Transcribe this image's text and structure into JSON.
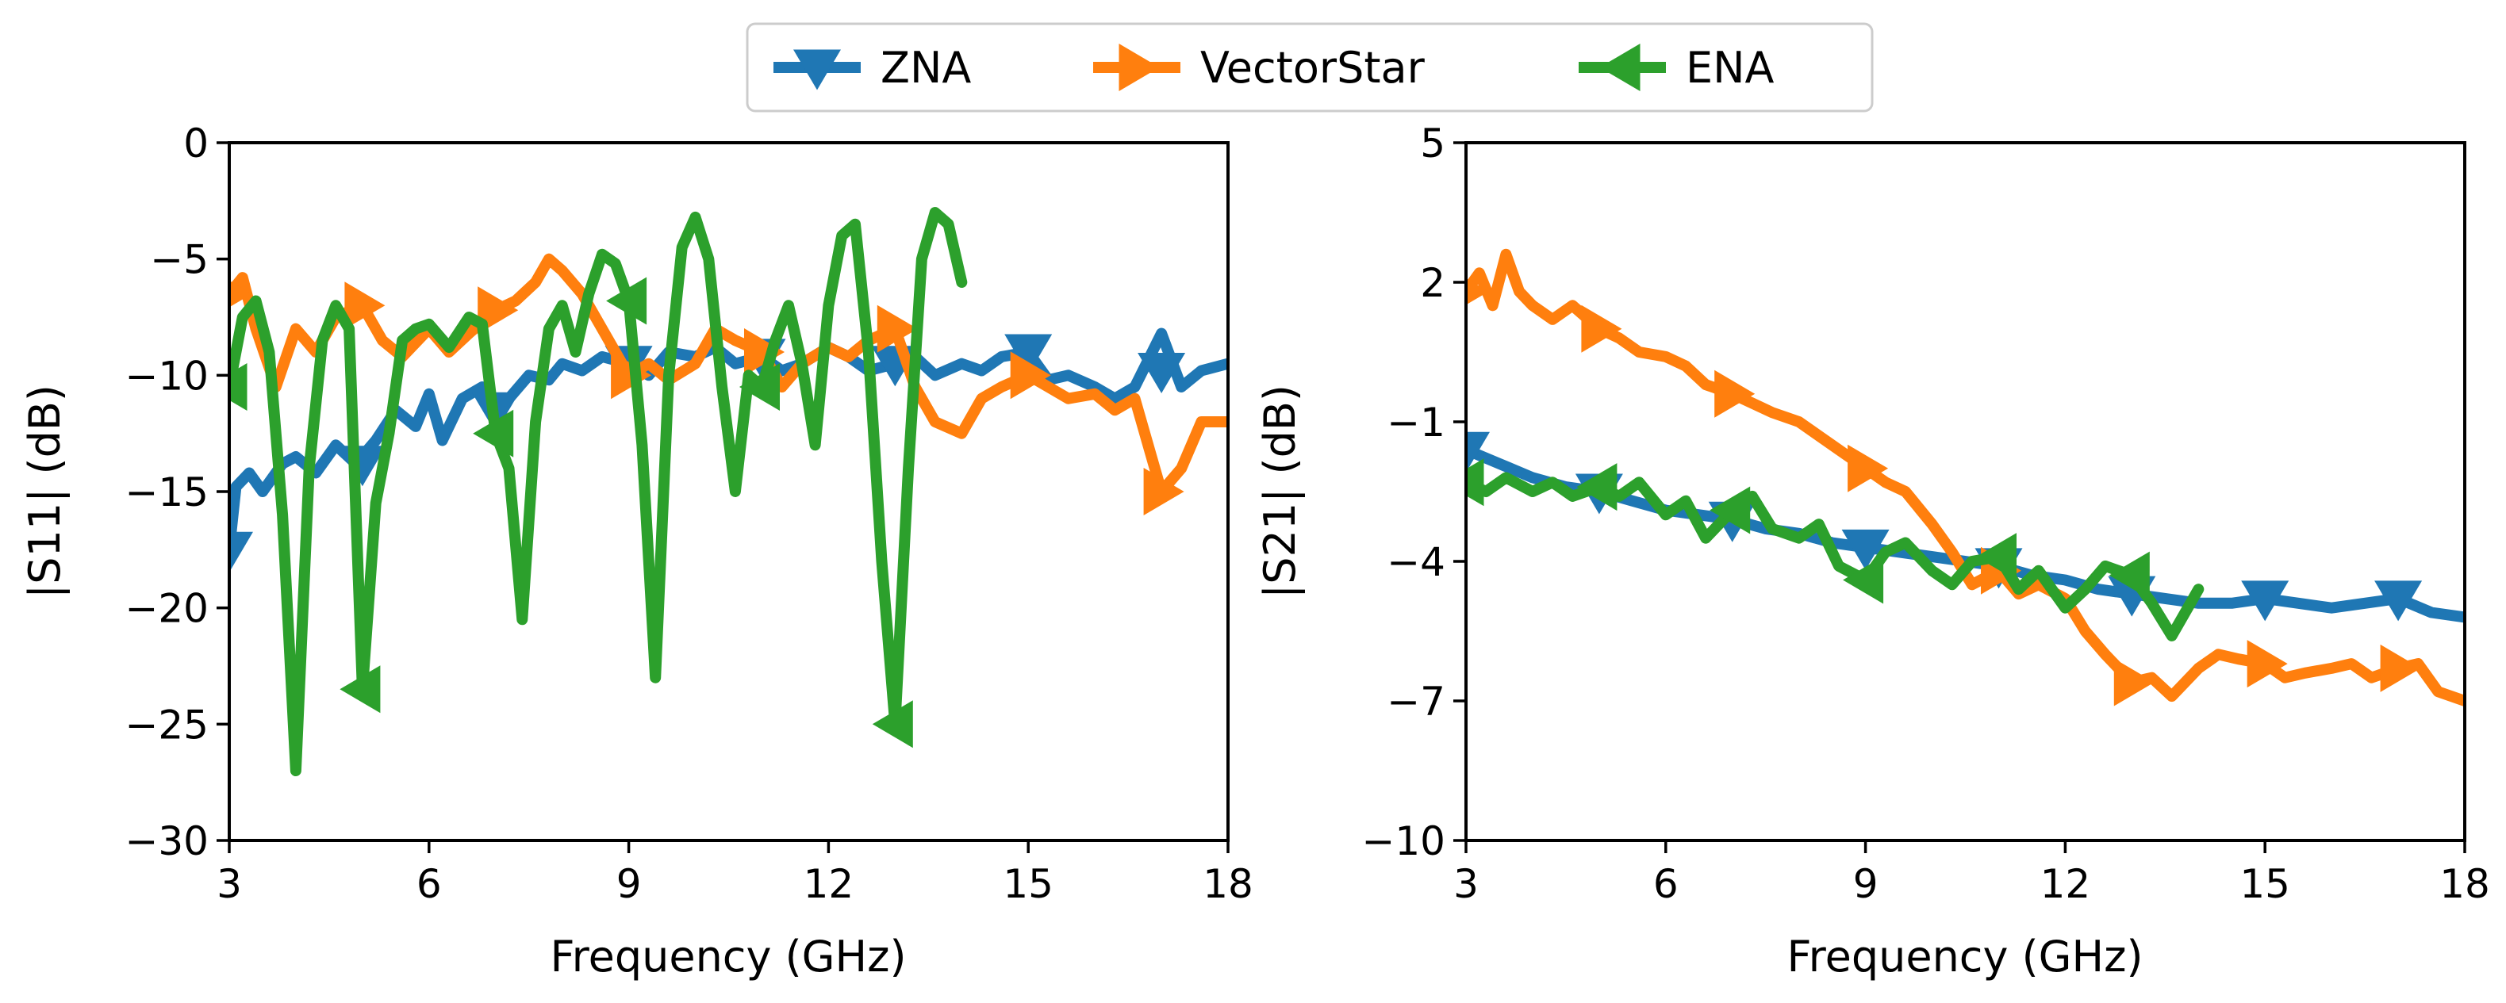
{
  "legend": {
    "items": [
      {
        "label": "ZNA",
        "color": "#1f77b4",
        "marker": "triangle-down"
      },
      {
        "label": "VectorStar",
        "color": "#ff7f0e",
        "marker": "triangle-right"
      },
      {
        "label": "ENA",
        "color": "#2ca02c",
        "marker": "triangle-left"
      }
    ]
  },
  "chart_data": [
    {
      "type": "line",
      "id": "s11",
      "xlabel": "Frequency (GHz)",
      "ylabel": "|S11| (dB)",
      "xlim": [
        3,
        18
      ],
      "ylim": [
        -30,
        0
      ],
      "xticks": [
        3,
        6,
        9,
        12,
        15,
        18
      ],
      "yticks": [
        0,
        -5,
        -10,
        -15,
        -20,
        -25,
        -30
      ],
      "ytick_labels": [
        "0",
        "−5",
        "−10",
        "−15",
        "−20",
        "−25",
        "−30"
      ],
      "series": [
        {
          "name": "ZNA",
          "x": [
            3.0,
            3.1,
            3.3,
            3.5,
            3.8,
            4.0,
            4.3,
            4.6,
            4.9,
            5.2,
            5.5,
            5.8,
            6.0,
            6.2,
            6.5,
            6.8,
            7.0,
            7.2,
            7.5,
            7.8,
            8.0,
            8.3,
            8.6,
            9.0,
            9.3,
            9.6,
            10.0,
            10.3,
            10.6,
            11.0,
            11.3,
            11.6,
            12.0,
            12.3,
            12.6,
            13.0,
            13.3,
            13.6,
            14.0,
            14.3,
            14.6,
            15.0,
            15.3,
            15.6,
            16.0,
            16.3,
            16.6,
            17.0,
            17.3,
            17.6,
            18.0
          ],
          "y": [
            -17.5,
            -14.8,
            -14.2,
            -15.0,
            -13.8,
            -13.5,
            -14.2,
            -13.0,
            -13.8,
            -12.8,
            -11.5,
            -12.2,
            -10.8,
            -12.8,
            -11.0,
            -10.5,
            -11.5,
            -11.0,
            -10.0,
            -10.2,
            -9.5,
            -9.8,
            -9.2,
            -9.5,
            -10.0,
            -9.0,
            -9.2,
            -8.8,
            -9.5,
            -9.2,
            -9.8,
            -9.5,
            -8.8,
            -9.2,
            -9.8,
            -9.5,
            -9.2,
            -10.0,
            -9.5,
            -9.8,
            -9.2,
            -9.0,
            -10.2,
            -10.0,
            -10.5,
            -11.0,
            -10.5,
            -8.2,
            -10.5,
            -9.8,
            -9.5
          ],
          "markers_x": [
            3,
            5,
            7,
            9,
            11,
            13,
            15,
            17
          ],
          "markers_y": [
            -17.5,
            -13.8,
            -11.5,
            -9.5,
            -9.2,
            -9.5,
            -9.0,
            -9.8
          ]
        },
        {
          "name": "VectorStar",
          "x": [
            3.0,
            3.2,
            3.4,
            3.7,
            4.0,
            4.3,
            4.6,
            5.0,
            5.3,
            5.6,
            6.0,
            6.3,
            6.6,
            7.0,
            7.3,
            7.6,
            7.8,
            8.0,
            8.3,
            8.6,
            9.0,
            9.3,
            9.6,
            10.0,
            10.3,
            10.6,
            11.0,
            11.3,
            11.6,
            12.0,
            12.3,
            12.6,
            13.0,
            13.3,
            13.6,
            14.0,
            14.3,
            14.6,
            15.0,
            15.3,
            15.6,
            16.0,
            16.3,
            16.6,
            17.0,
            17.3,
            17.6,
            18.0
          ],
          "y": [
            -6.5,
            -5.8,
            -8.0,
            -10.5,
            -8.0,
            -9.0,
            -7.5,
            -7.0,
            -8.5,
            -9.2,
            -8.0,
            -9.0,
            -8.2,
            -7.2,
            -6.8,
            -6.0,
            -5.0,
            -5.5,
            -6.5,
            -8.0,
            -10.0,
            -9.5,
            -10.2,
            -9.5,
            -8.0,
            -8.5,
            -9.0,
            -10.5,
            -9.5,
            -8.8,
            -9.2,
            -8.5,
            -8.0,
            -10.5,
            -12.0,
            -12.5,
            -11.0,
            -10.5,
            -10.0,
            -10.5,
            -11.0,
            -10.8,
            -11.5,
            -11.0,
            -15.0,
            -14.0,
            -12.0,
            -12.0
          ],
          "markers_x": [
            3,
            5,
            7,
            9,
            11,
            13,
            15,
            17
          ],
          "markers_y": [
            -6.5,
            -7.0,
            -7.2,
            -10.0,
            -9.0,
            -8.0,
            -10.0,
            -15.0
          ]
        },
        {
          "name": "ENA",
          "x": [
            3.0,
            3.2,
            3.4,
            3.6,
            3.8,
            4.0,
            4.2,
            4.4,
            4.6,
            4.8,
            5.0,
            5.2,
            5.4,
            5.6,
            5.8,
            6.0,
            6.3,
            6.6,
            6.8,
            7.0,
            7.2,
            7.4,
            7.6,
            7.8,
            8.0,
            8.2,
            8.4,
            8.6,
            8.8,
            9.0,
            9.2,
            9.4,
            9.6,
            9.8,
            10.0,
            10.2,
            10.4,
            10.6,
            10.8,
            11.0,
            11.2,
            11.4,
            11.6,
            11.8,
            12.0,
            12.2,
            12.4,
            12.6,
            12.8,
            13.0,
            13.2,
            13.4,
            13.6,
            13.8,
            14.0
          ],
          "y": [
            -10.5,
            -7.5,
            -6.8,
            -9.0,
            -16.0,
            -27.0,
            -14.0,
            -8.5,
            -7.0,
            -8.0,
            -23.5,
            -15.5,
            -12.5,
            -8.5,
            -8.0,
            -7.8,
            -8.8,
            -7.5,
            -7.8,
            -12.5,
            -14.0,
            -20.5,
            -12.0,
            -8.0,
            -7.0,
            -9.0,
            -6.5,
            -4.8,
            -5.2,
            -6.8,
            -13.0,
            -23.0,
            -10.0,
            -4.5,
            -3.2,
            -5.0,
            -10.5,
            -15.0,
            -10.0,
            -10.5,
            -8.5,
            -7.0,
            -9.5,
            -13.0,
            -7.0,
            -4.0,
            -3.5,
            -9.0,
            -18.0,
            -25.0,
            -14.0,
            -5.0,
            -3.0,
            -3.5,
            -6.0
          ],
          "markers_x": [
            3,
            5,
            7,
            9,
            11,
            13
          ],
          "markers_y": [
            -10.5,
            -23.5,
            -12.5,
            -6.8,
            -10.5,
            -25.0
          ]
        }
      ]
    },
    {
      "type": "line",
      "id": "s21",
      "xlabel": "Frequency (GHz)",
      "ylabel": "|S21| (dB)",
      "xlim": [
        3,
        18
      ],
      "ylim": [
        -10,
        5
      ],
      "xticks": [
        3,
        6,
        9,
        12,
        15,
        18
      ],
      "yticks": [
        5,
        2,
        -1,
        -4,
        -7,
        -10
      ],
      "ytick_labels": [
        "5",
        "2",
        "−1",
        "−4",
        "−7",
        "−10"
      ],
      "series": [
        {
          "name": "ZNA",
          "x": [
            3.0,
            3.5,
            4.0,
            4.5,
            5.0,
            5.5,
            6.0,
            6.5,
            7.0,
            7.5,
            8.0,
            8.5,
            9.0,
            9.5,
            10.0,
            10.5,
            11.0,
            11.5,
            12.0,
            12.5,
            13.0,
            13.5,
            14.0,
            14.5,
            15.0,
            15.5,
            16.0,
            16.5,
            17.0,
            17.5,
            18.0
          ],
          "y": [
            -1.6,
            -1.9,
            -2.2,
            -2.4,
            -2.5,
            -2.7,
            -2.9,
            -3.0,
            -3.1,
            -3.3,
            -3.4,
            -3.6,
            -3.7,
            -3.8,
            -3.9,
            -4.0,
            -4.1,
            -4.3,
            -4.4,
            -4.6,
            -4.7,
            -4.8,
            -4.9,
            -4.9,
            -4.8,
            -4.9,
            -5.0,
            -4.9,
            -4.8,
            -5.1,
            -5.2
          ],
          "markers_x": [
            3,
            5,
            7,
            9,
            11,
            13,
            15,
            17
          ],
          "markers_y": [
            -1.6,
            -2.5,
            -3.1,
            -3.7,
            -4.1,
            -4.7,
            -4.8,
            -4.8
          ]
        },
        {
          "name": "VectorStar",
          "x": [
            3.0,
            3.2,
            3.4,
            3.6,
            3.8,
            4.0,
            4.3,
            4.6,
            5.0,
            5.3,
            5.6,
            6.0,
            6.3,
            6.6,
            7.0,
            7.3,
            7.6,
            8.0,
            8.3,
            8.6,
            9.0,
            9.3,
            9.6,
            10.0,
            10.3,
            10.6,
            11.0,
            11.3,
            11.6,
            12.0,
            12.3,
            12.6,
            13.0,
            13.3,
            13.6,
            14.0,
            14.3,
            14.6,
            15.0,
            15.3,
            15.6,
            16.0,
            16.3,
            16.6,
            17.0,
            17.3,
            17.6,
            18.0
          ],
          "y": [
            1.8,
            2.2,
            1.5,
            2.6,
            1.8,
            1.5,
            1.2,
            1.5,
            1.0,
            0.8,
            0.5,
            0.4,
            0.2,
            -0.2,
            -0.4,
            -0.6,
            -0.8,
            -1.0,
            -1.3,
            -1.6,
            -2.0,
            -2.3,
            -2.5,
            -3.2,
            -3.8,
            -4.5,
            -4.2,
            -4.7,
            -4.5,
            -4.8,
            -5.5,
            -6.0,
            -6.6,
            -6.5,
            -6.9,
            -6.3,
            -6.0,
            -6.1,
            -6.2,
            -6.5,
            -6.4,
            -6.3,
            -6.2,
            -6.5,
            -6.3,
            -6.2,
            -6.8,
            -7.0
          ],
          "markers_x": [
            3,
            5,
            7,
            9,
            11,
            13,
            15,
            17
          ],
          "markers_y": [
            1.8,
            1.0,
            -0.4,
            -2.0,
            -4.2,
            -6.6,
            -6.2,
            -6.3
          ]
        },
        {
          "name": "ENA",
          "x": [
            3.0,
            3.3,
            3.6,
            4.0,
            4.3,
            4.6,
            5.0,
            5.3,
            5.6,
            6.0,
            6.3,
            6.6,
            7.0,
            7.3,
            7.6,
            8.0,
            8.3,
            8.6,
            9.0,
            9.3,
            9.6,
            10.0,
            10.3,
            10.6,
            11.0,
            11.3,
            11.6,
            12.0,
            12.3,
            12.6,
            13.0,
            13.3,
            13.6,
            14.0
          ],
          "y": [
            -2.3,
            -2.5,
            -2.2,
            -2.5,
            -2.3,
            -2.6,
            -2.4,
            -2.6,
            -2.3,
            -3.0,
            -2.7,
            -3.5,
            -2.9,
            -2.6,
            -3.3,
            -3.5,
            -3.2,
            -4.1,
            -4.4,
            -3.8,
            -3.6,
            -4.2,
            -4.5,
            -4.0,
            -3.9,
            -4.6,
            -4.2,
            -5.0,
            -4.6,
            -4.1,
            -4.3,
            -4.9,
            -5.6,
            -4.6
          ],
          "markers_x": [
            3,
            5,
            7,
            9,
            11,
            13
          ],
          "markers_y": [
            -2.3,
            -2.4,
            -2.9,
            -4.4,
            -3.9,
            -4.3
          ]
        }
      ]
    }
  ]
}
